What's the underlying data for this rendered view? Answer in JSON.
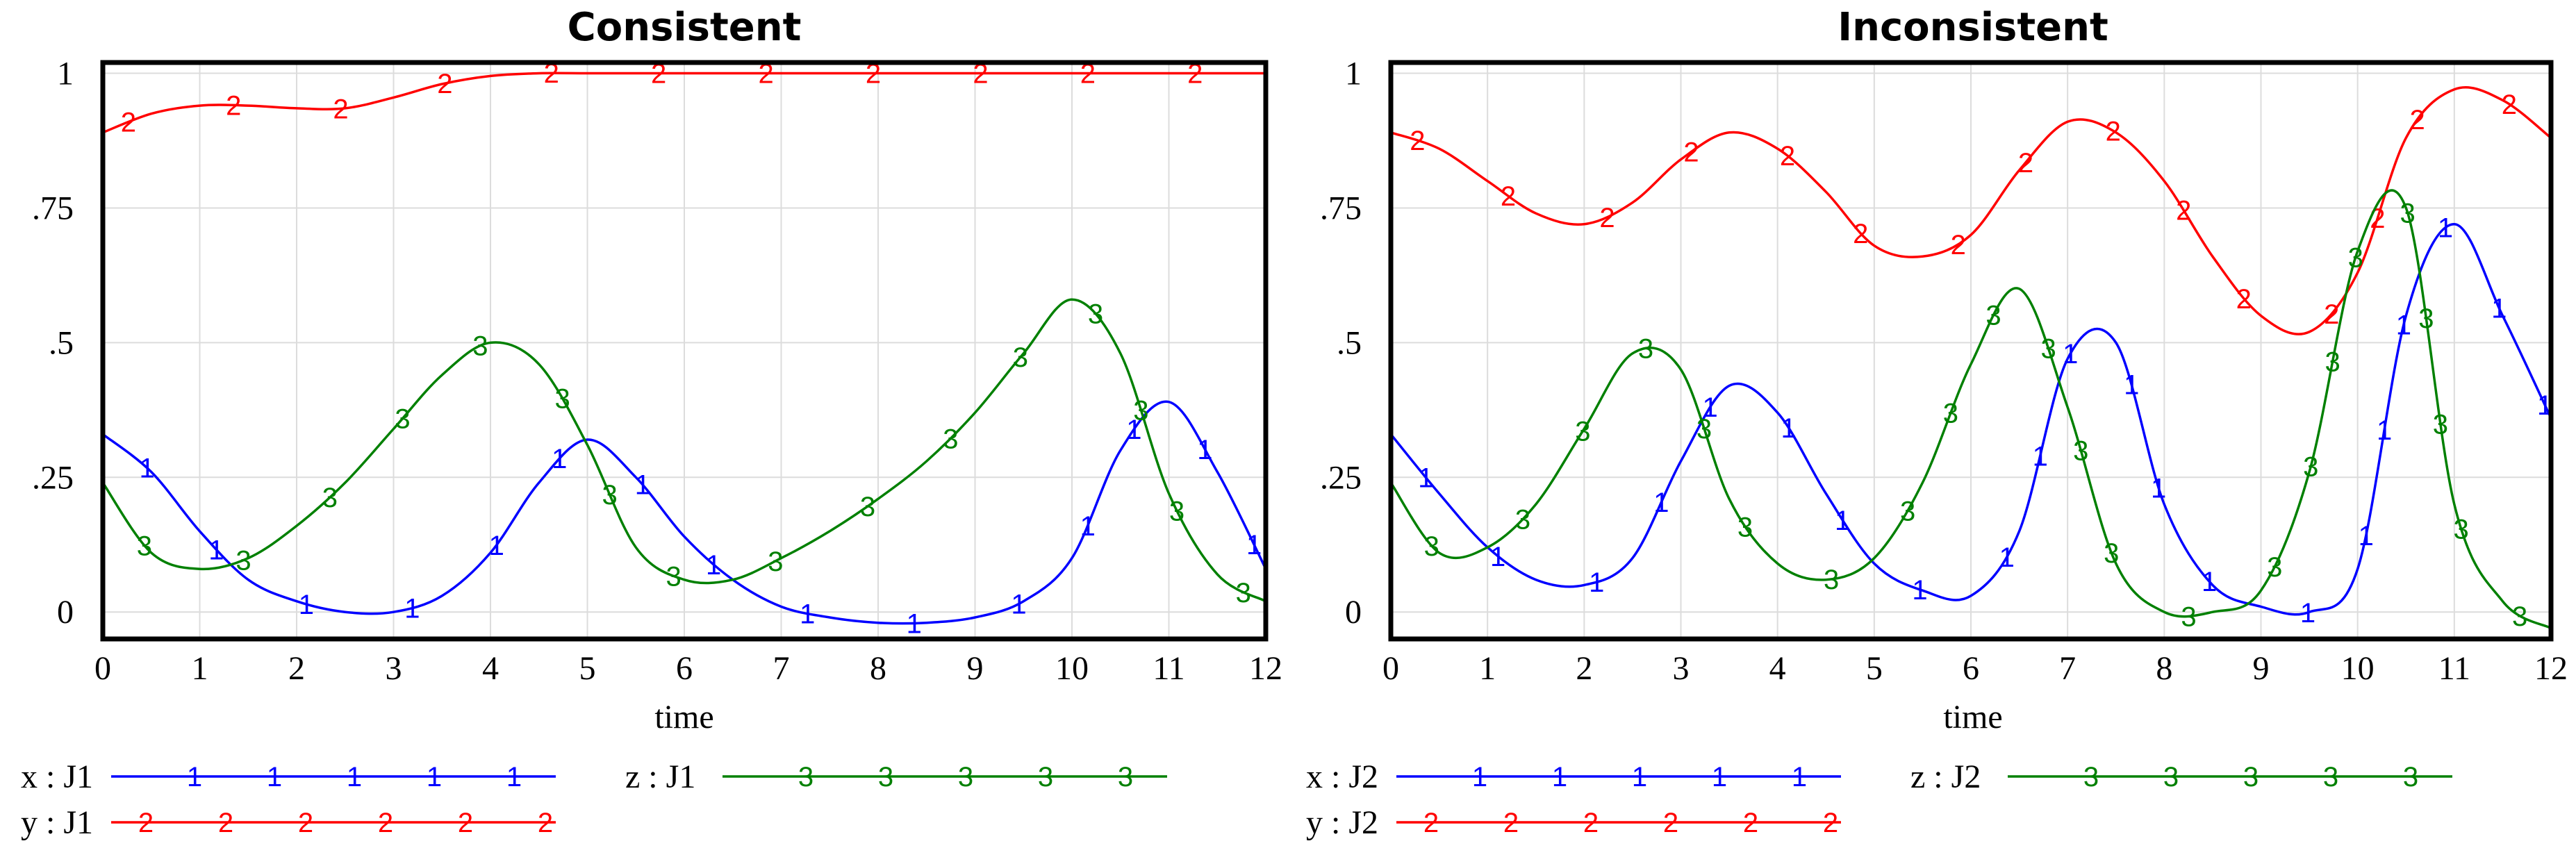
{
  "chart_data": [
    {
      "type": "line",
      "title": "Consistent",
      "xlabel": "time",
      "ylabel": "",
      "xlim": [
        0,
        12
      ],
      "ylim": [
        -0.05,
        1.02
      ],
      "x_ticks": [
        "0",
        "1",
        "2",
        "3",
        "4",
        "5",
        "6",
        "7",
        "8",
        "9",
        "10",
        "11",
        "12"
      ],
      "y_ticks": [
        {
          "value": 1,
          "label": "1"
        },
        {
          "value": 0.75,
          "label": ".75"
        },
        {
          "value": 0.5,
          "label": ".5"
        },
        {
          "value": 0.25,
          "label": ".25"
        },
        {
          "value": 0,
          "label": "0"
        }
      ],
      "grid": true,
      "x": [
        0,
        0.5,
        1,
        1.5,
        2,
        2.5,
        3,
        3.5,
        4,
        4.5,
        5,
        5.5,
        6,
        6.5,
        7,
        7.5,
        8,
        8.5,
        9,
        9.5,
        10,
        10.5,
        11,
        11.5,
        12
      ],
      "series": [
        {
          "name": "x : J1",
          "marker": "1",
          "color": "#0000ff",
          "values": [
            0.33,
            0.26,
            0.15,
            0.06,
            0.02,
            0.0,
            0.0,
            0.03,
            0.11,
            0.24,
            0.32,
            0.25,
            0.14,
            0.06,
            0.01,
            -0.01,
            -0.02,
            -0.02,
            -0.01,
            0.02,
            0.1,
            0.3,
            0.39,
            0.26,
            0.08
          ]
        },
        {
          "name": "y : J1",
          "marker": "2",
          "color": "#ff0000",
          "values": [
            0.89,
            0.925,
            0.94,
            0.94,
            0.935,
            0.935,
            0.955,
            0.98,
            0.995,
            1.0,
            1.0,
            1.0,
            1.0,
            1.0,
            1.0,
            1.0,
            1.0,
            1.0,
            1.0,
            1.0,
            1.0,
            1.0,
            1.0,
            1.0,
            1.0
          ]
        },
        {
          "name": "z : J1",
          "marker": "3",
          "color": "#008000",
          "values": [
            0.24,
            0.11,
            0.08,
            0.1,
            0.16,
            0.24,
            0.34,
            0.44,
            0.5,
            0.46,
            0.31,
            0.12,
            0.06,
            0.06,
            0.1,
            0.15,
            0.21,
            0.28,
            0.37,
            0.48,
            0.58,
            0.48,
            0.22,
            0.07,
            0.02
          ]
        }
      ],
      "legend_position": "bottom"
    },
    {
      "type": "line",
      "title": "Inconsistent",
      "xlabel": "time",
      "ylabel": "",
      "xlim": [
        0,
        12
      ],
      "ylim": [
        -0.05,
        1.02
      ],
      "x_ticks": [
        "0",
        "1",
        "2",
        "3",
        "4",
        "5",
        "6",
        "7",
        "8",
        "9",
        "10",
        "11",
        "12"
      ],
      "y_ticks": [
        {
          "value": 1,
          "label": "1"
        },
        {
          "value": 0.75,
          "label": ".75"
        },
        {
          "value": 0.5,
          "label": ".5"
        },
        {
          "value": 0.25,
          "label": ".25"
        },
        {
          "value": 0,
          "label": "0"
        }
      ],
      "grid": true,
      "x": [
        0,
        0.5,
        1,
        1.5,
        2,
        2.5,
        3,
        3.5,
        4,
        4.5,
        5,
        5.5,
        6,
        6.5,
        7,
        7.5,
        8,
        8.5,
        9,
        9.5,
        10,
        10.5,
        11,
        11.5,
        12
      ],
      "series": [
        {
          "name": "x : J2",
          "marker": "1",
          "color": "#0000ff",
          "values": [
            0.33,
            0.22,
            0.12,
            0.06,
            0.05,
            0.1,
            0.28,
            0.42,
            0.37,
            0.22,
            0.09,
            0.04,
            0.03,
            0.15,
            0.47,
            0.5,
            0.2,
            0.05,
            0.01,
            0.0,
            0.08,
            0.55,
            0.72,
            0.55,
            0.36
          ]
        },
        {
          "name": "y : J2",
          "marker": "2",
          "color": "#ff0000",
          "values": [
            0.89,
            0.86,
            0.8,
            0.74,
            0.72,
            0.76,
            0.84,
            0.89,
            0.86,
            0.78,
            0.68,
            0.66,
            0.7,
            0.82,
            0.91,
            0.89,
            0.8,
            0.66,
            0.55,
            0.52,
            0.63,
            0.88,
            0.97,
            0.95,
            0.88
          ]
        },
        {
          "name": "z : J2",
          "marker": "3",
          "color": "#008000",
          "values": [
            0.24,
            0.11,
            0.12,
            0.2,
            0.34,
            0.48,
            0.45,
            0.21,
            0.09,
            0.06,
            0.1,
            0.24,
            0.46,
            0.6,
            0.38,
            0.09,
            0.0,
            0.0,
            0.04,
            0.26,
            0.67,
            0.75,
            0.2,
            0.02,
            -0.03
          ]
        }
      ],
      "legend_position": "bottom"
    }
  ]
}
